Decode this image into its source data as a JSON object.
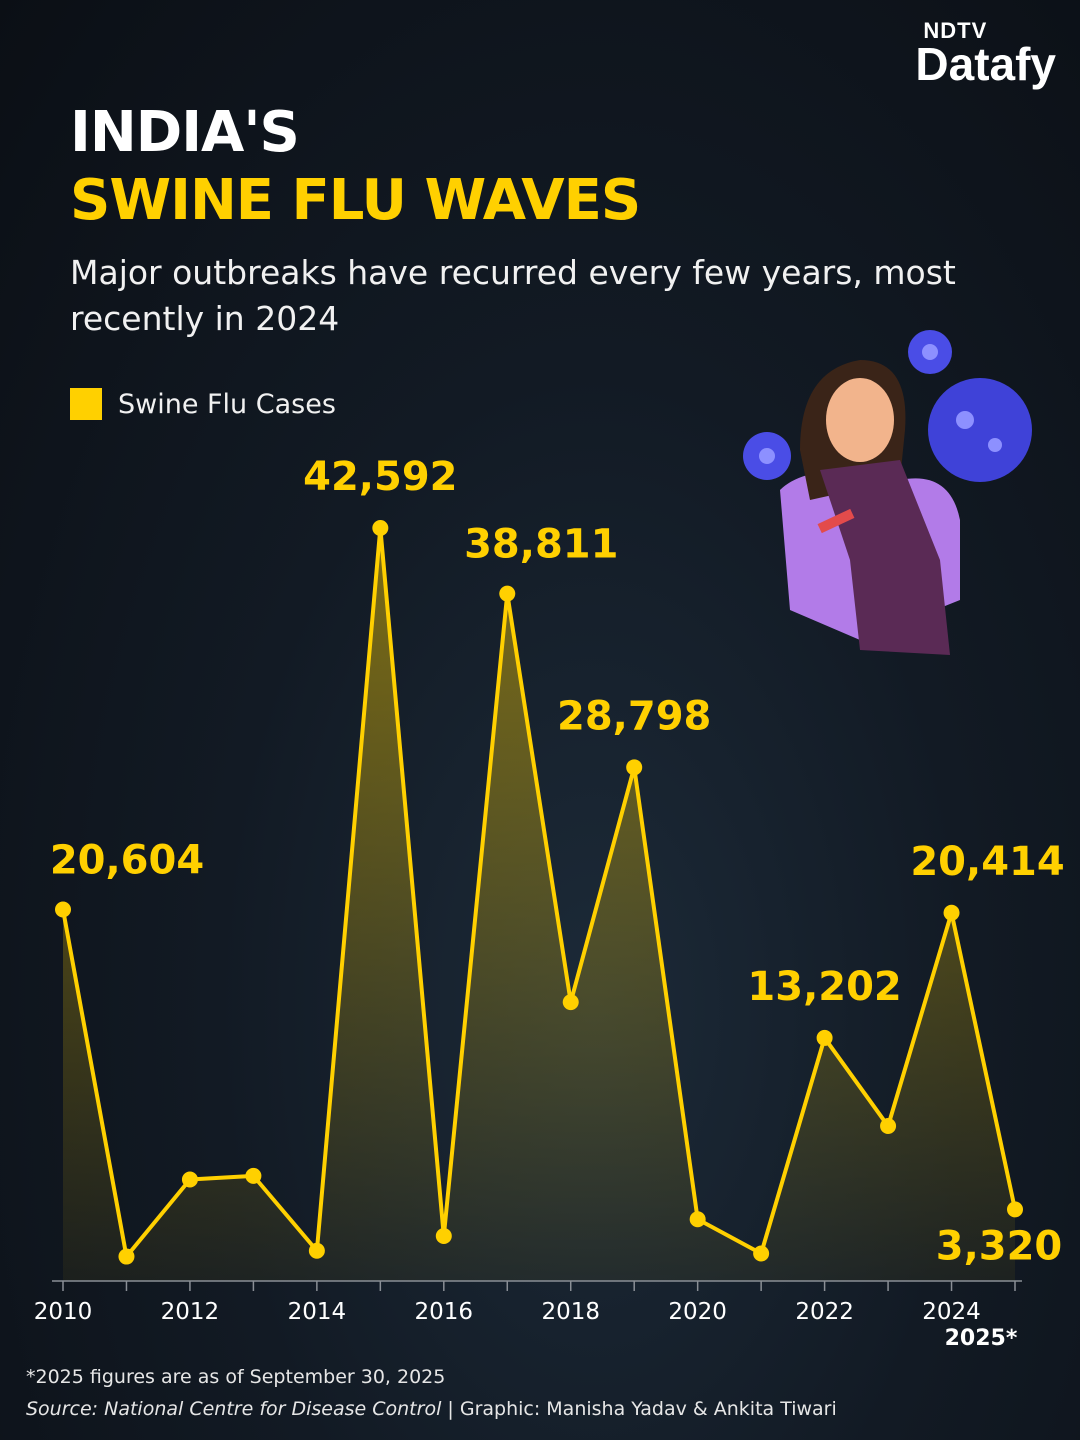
{
  "brand": {
    "top": "NDTV",
    "main": "Datafy"
  },
  "title_line1": "INDIA'S",
  "title_line2": "SWINE FLU WAVES",
  "subtitle": "Major outbreaks have recurred every few years, most recently in 2024",
  "legend_label": "Swine Flu Cases",
  "colors": {
    "accent": "#ffd000",
    "background": "#121a24"
  },
  "chart_data": {
    "type": "area",
    "x": [
      2010,
      2011,
      2012,
      2013,
      2014,
      2015,
      2016,
      2017,
      2018,
      2019,
      2020,
      2021,
      2022,
      2023,
      2024,
      2025
    ],
    "tick_labels": [
      "2010",
      "2012",
      "2014",
      "2016",
      "2018",
      "2020",
      "2022",
      "2024"
    ],
    "extra_tick_label": "2025*",
    "series": [
      {
        "name": "Swine Flu Cases",
        "values": [
          20604,
          603,
          5044,
          5253,
          937,
          42592,
          1786,
          38811,
          15266,
          28798,
          2752,
          778,
          13202,
          8125,
          20414,
          3320
        ]
      }
    ],
    "data_labels": {
      "2010": "20,604",
      "2015": "42,592",
      "2017": "38,811",
      "2019": "28,798",
      "2022": "13,202",
      "2024": "20,414",
      "2025": "3,320"
    },
    "ylim": [
      0,
      45000
    ],
    "grid": false,
    "legend_position": "top-left"
  },
  "footnote": "*2025 figures are as of September 30, 2025",
  "source_label": "Source: National Centre for Disease Control",
  "credit": " | Graphic: Manisha Yadav & Ankita Tiwari"
}
